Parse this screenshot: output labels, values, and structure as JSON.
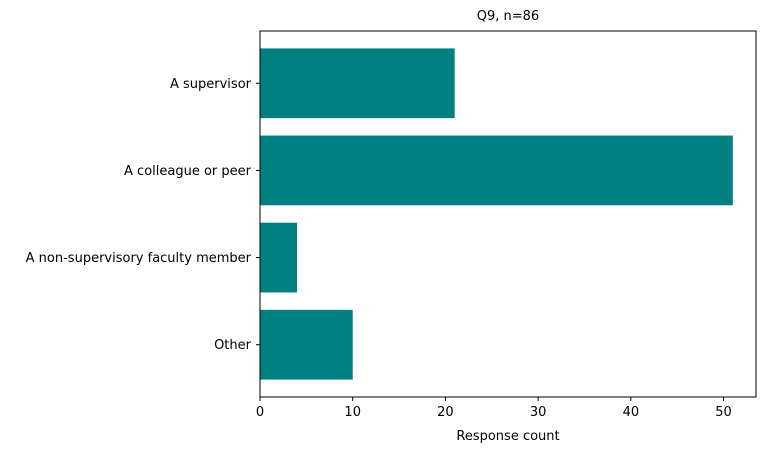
{
  "chart_data": {
    "type": "bar",
    "orientation": "horizontal",
    "title": "Q9, n=86",
    "xlabel": "Response count",
    "ylabel": "",
    "categories": [
      "A supervisor",
      "A colleague or peer",
      "A non-supervisory faculty member",
      "Other"
    ],
    "values": [
      21,
      51,
      4,
      10
    ],
    "xlim": [
      0,
      53.5
    ],
    "xticks": [
      "0",
      "10",
      "20",
      "30",
      "40",
      "50"
    ],
    "bar_color": "#008080",
    "grid": false,
    "legend": "none"
  }
}
